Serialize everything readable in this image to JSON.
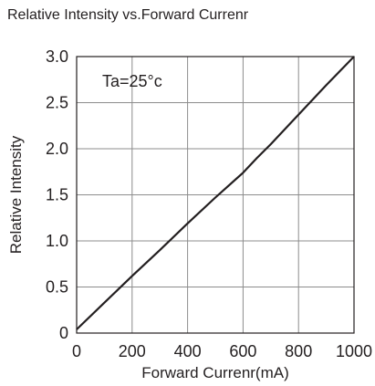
{
  "chart_data": {
    "type": "line",
    "title": "Relative Intensity vs.Forward Currenr",
    "xlabel": "Forward Currenr(mA)",
    "ylabel": "Relative Intensity",
    "annotation": "Ta=25°c",
    "xlim": [
      0,
      1000
    ],
    "ylim": [
      0,
      3.0
    ],
    "x_ticks": [
      "0",
      "200",
      "400",
      "600",
      "800",
      "1000"
    ],
    "y_ticks": [
      "0",
      "0.5",
      "1.0",
      "1.5",
      "2.0",
      "2.5",
      "3.0"
    ],
    "grid": true,
    "legend": "none",
    "series": [
      {
        "x": [
          0,
          100,
          200,
          300,
          400,
          500,
          600,
          650,
          700,
          800,
          900,
          1000
        ],
        "y": [
          0.04,
          0.33,
          0.62,
          0.9,
          1.19,
          1.47,
          1.74,
          1.9,
          2.05,
          2.37,
          2.69,
          3.0
        ]
      }
    ],
    "colors": {
      "line": "#231f20",
      "grid": "#8c8c8c",
      "axis": "#231f20"
    }
  }
}
